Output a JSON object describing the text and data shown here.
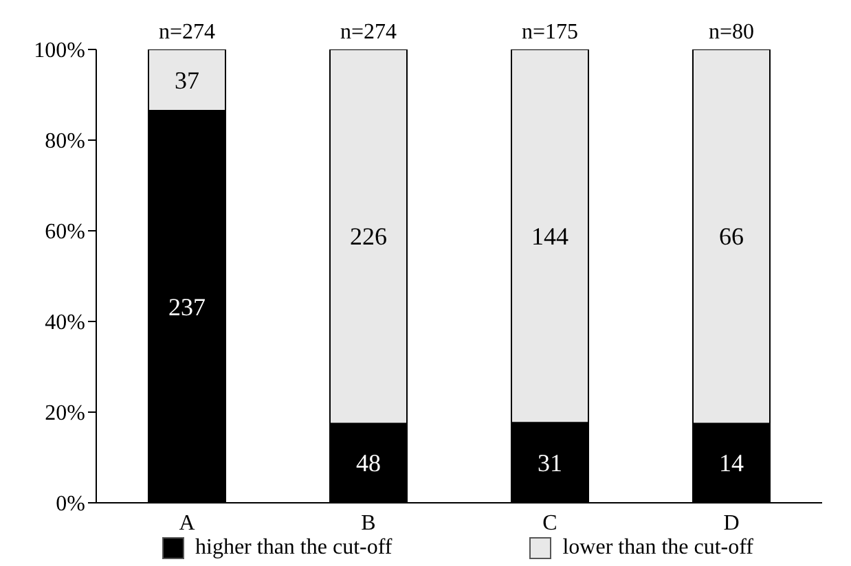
{
  "chart_data": {
    "type": "bar",
    "stacked": true,
    "categories": [
      "A",
      "B",
      "C",
      "D"
    ],
    "series": [
      {
        "name": "higher than the cut-off",
        "color": "#000000",
        "values": [
          86.5,
          17.5,
          17.7,
          17.5
        ]
      },
      {
        "name": "lower than the cut-off",
        "color": "#e8e8e8",
        "values": [
          13.5,
          82.5,
          82.3,
          82.5
        ]
      }
    ],
    "annotations": [
      "237",
      "37",
      "48",
      "226",
      "31",
      "144",
      "14",
      "66",
      "n=274",
      "n=274",
      "n=175",
      "n=80"
    ],
    "ylim": [
      0,
      100
    ],
    "yticks": [
      {
        "value": 0,
        "label": "0%"
      },
      {
        "value": 20,
        "label": "20%"
      },
      {
        "value": 40,
        "label": "40%"
      },
      {
        "value": 60,
        "label": "60%"
      },
      {
        "value": 80,
        "label": "80%"
      },
      {
        "value": 100,
        "label": "100%"
      }
    ],
    "grid": false,
    "legend": "bottom"
  }
}
